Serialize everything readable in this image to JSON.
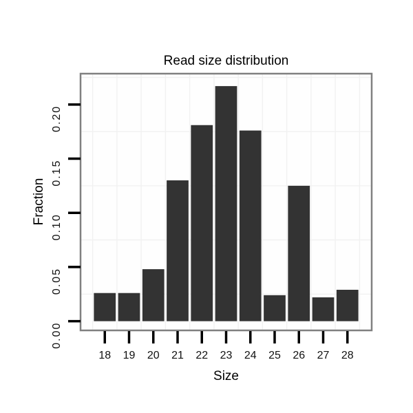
{
  "chart_data": {
    "type": "bar",
    "title": "Read size distribution",
    "xlabel": "Size",
    "ylabel": "Fraction",
    "categories": [
      "18",
      "19",
      "20",
      "21",
      "22",
      "23",
      "24",
      "25",
      "26",
      "27",
      "28"
    ],
    "values": [
      0.026,
      0.026,
      0.048,
      0.13,
      0.181,
      0.217,
      0.176,
      0.024,
      0.125,
      0.022,
      0.029
    ],
    "y_ticks": [
      {
        "value": 0.0,
        "label": "0.00"
      },
      {
        "value": 0.05,
        "label": "0.05"
      },
      {
        "value": 0.1,
        "label": "0.10"
      },
      {
        "value": 0.15,
        "label": "0.15"
      },
      {
        "value": 0.2,
        "label": "0.20"
      }
    ],
    "ylim": [
      -0.0085,
      0.2285
    ],
    "bar_width_fraction": 0.9,
    "grid": {
      "minor_y_start": 0.025,
      "minor_y_step": 0.05,
      "vertical_lines": "between-categories",
      "major_lines_shown": false
    },
    "legend": "none",
    "colors": {
      "bar": "#333333",
      "panel_border": "#808080",
      "panel_background": "#fefefe",
      "grid": "#f1f1f1",
      "tick": "#000000",
      "tick_label": "#111111",
      "title": "#000000",
      "background": "#ffffff"
    }
  }
}
